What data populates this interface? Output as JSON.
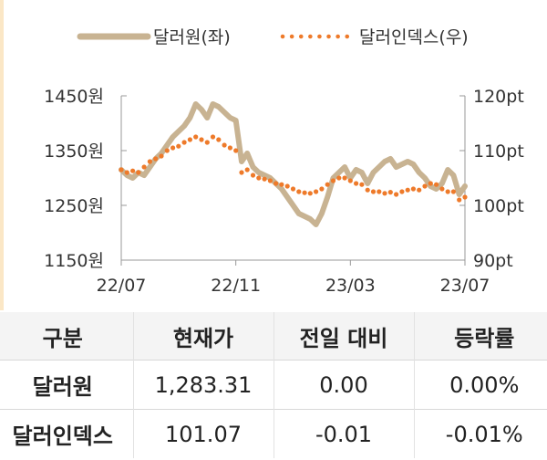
{
  "chart_data": {
    "type": "line",
    "legend": {
      "position": "top",
      "items": [
        "달러원(좌)",
        "달러인덱스(우)"
      ]
    },
    "x_ticks": [
      "22/07",
      "22/11",
      "23/03",
      "23/07"
    ],
    "y_left": {
      "range": [
        1150,
        1450
      ],
      "ticks": [
        "1450원",
        "1350원",
        "1250원",
        "1150원"
      ]
    },
    "y_right": {
      "range": [
        90,
        120
      ],
      "ticks": [
        "120pt",
        "110pt",
        "100pt",
        "90pt"
      ]
    },
    "colors": {
      "krw": "#c8b392",
      "dxy": "#ee7a2a",
      "axis": "#999999"
    },
    "x_range": [
      0,
      12
    ],
    "series": [
      {
        "name": "달러원(좌)",
        "axis": "left",
        "x": [
          0,
          0.2,
          0.4,
          0.6,
          0.8,
          1.0,
          1.2,
          1.4,
          1.6,
          1.8,
          2.0,
          2.2,
          2.4,
          2.6,
          2.8,
          3.0,
          3.2,
          3.4,
          3.6,
          3.8,
          4.0,
          4.2,
          4.4,
          4.6,
          4.8,
          5.0,
          5.2,
          5.4,
          5.6,
          5.8,
          6.0,
          6.2,
          6.4,
          6.6,
          6.8,
          7.0,
          7.2,
          7.4,
          7.6,
          7.8,
          8.0,
          8.2,
          8.4,
          8.6,
          8.8,
          9.0,
          9.2,
          9.4,
          9.6,
          9.8,
          10.0,
          10.2,
          10.4,
          10.6,
          10.8,
          11.0,
          11.2,
          11.4,
          11.6,
          11.8,
          12.0
        ],
        "values": [
          1315,
          1305,
          1300,
          1310,
          1305,
          1320,
          1335,
          1345,
          1360,
          1375,
          1385,
          1395,
          1410,
          1435,
          1425,
          1410,
          1435,
          1430,
          1420,
          1410,
          1405,
          1330,
          1345,
          1320,
          1310,
          1305,
          1300,
          1290,
          1280,
          1265,
          1250,
          1235,
          1230,
          1225,
          1215,
          1235,
          1265,
          1300,
          1310,
          1320,
          1300,
          1315,
          1310,
          1290,
          1310,
          1320,
          1330,
          1335,
          1320,
          1325,
          1330,
          1325,
          1310,
          1300,
          1285,
          1280,
          1290,
          1315,
          1305,
          1270,
          1285
        ]
      },
      {
        "name": "달러인덱스(우)",
        "axis": "right",
        "x": [
          0,
          0.2,
          0.4,
          0.6,
          0.8,
          1.0,
          1.2,
          1.4,
          1.6,
          1.8,
          2.0,
          2.2,
          2.4,
          2.6,
          2.8,
          3.0,
          3.2,
          3.4,
          3.6,
          3.8,
          4.0,
          4.2,
          4.4,
          4.6,
          4.8,
          5.0,
          5.2,
          5.4,
          5.6,
          5.8,
          6.0,
          6.2,
          6.4,
          6.6,
          6.8,
          7.0,
          7.2,
          7.4,
          7.6,
          7.8,
          8.0,
          8.2,
          8.4,
          8.6,
          8.8,
          9.0,
          9.2,
          9.4,
          9.6,
          9.8,
          10.0,
          10.2,
          10.4,
          10.6,
          10.8,
          11.0,
          11.2,
          11.4,
          11.6,
          11.8,
          12.0
        ],
        "values": [
          106.5,
          106.0,
          106.3,
          106.0,
          107.0,
          108.0,
          108.5,
          109.0,
          110.0,
          110.5,
          110.8,
          111.5,
          112.0,
          112.5,
          112.0,
          111.5,
          112.5,
          112.0,
          111.0,
          110.5,
          110.0,
          106.0,
          106.5,
          105.5,
          105.0,
          104.8,
          104.5,
          104.0,
          103.8,
          103.5,
          103.0,
          102.5,
          102.3,
          102.2,
          102.5,
          103.0,
          103.8,
          104.5,
          105.0,
          105.0,
          104.5,
          104.0,
          103.8,
          102.8,
          102.5,
          102.5,
          102.2,
          102.4,
          102.0,
          102.5,
          102.8,
          103.0,
          102.8,
          103.5,
          104.0,
          103.8,
          103.0,
          102.5,
          102.5,
          101.0,
          101.5
        ]
      }
    ]
  },
  "table": {
    "headers": [
      "구분",
      "현재가",
      "전일 대비",
      "등락률"
    ],
    "rows": [
      [
        "달러원",
        "1,283.31",
        "0.00",
        "0.00%"
      ],
      [
        "달러인덱스",
        "101.07",
        "-0.01",
        "-0.01%"
      ]
    ]
  }
}
